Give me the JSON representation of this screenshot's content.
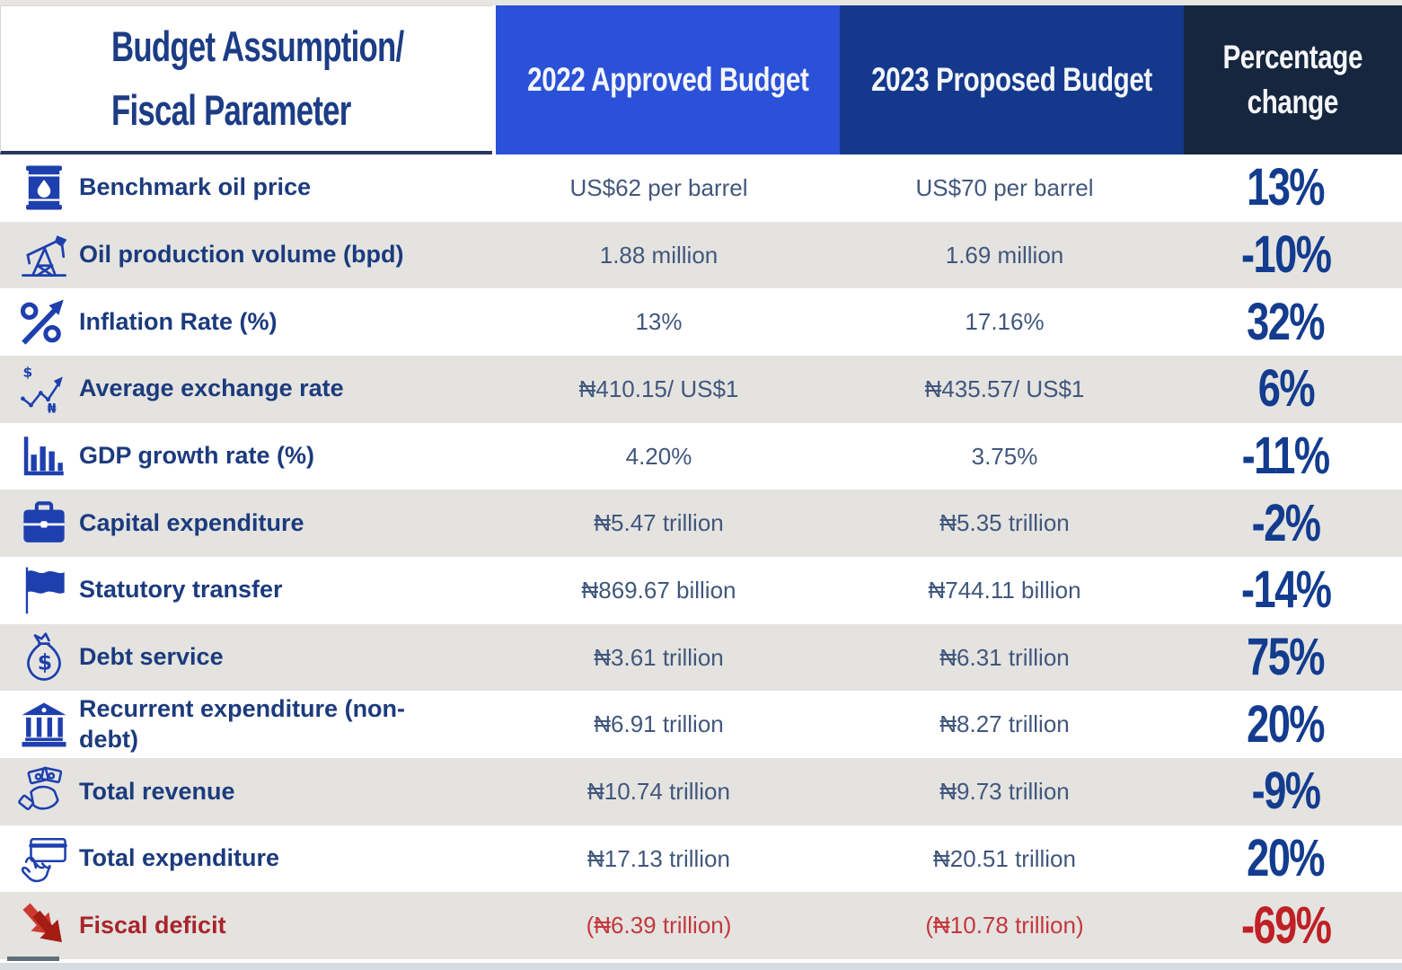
{
  "header": {
    "param_line1": "Budget Assumption/",
    "param_line2": "Fiscal Parameter",
    "col_2022": "2022 Approved Budget",
    "col_2023": "2023 Proposed Budget",
    "col_pct_line1": "Percentage",
    "col_pct_line2": "change"
  },
  "colors": {
    "bright_blue": "#2b51d8",
    "dark_blue": "#14398c",
    "navy": "#16263e",
    "row_alt_gray": "#e4e3e0",
    "label_blue": "#1c3b7d",
    "value_blue_gray": "#41577c",
    "pct_blue": "#133c8f",
    "deficit_red": "#bf2026",
    "icon_blue": "#1e3fae"
  },
  "rows": [
    {
      "icon": "oil-barrel-icon",
      "label": "Benchmark oil price",
      "v2022": "US$62 per barrel",
      "v2023": "US$70 per barrel",
      "pct": "13%",
      "deficit": false
    },
    {
      "icon": "oil-pump-icon",
      "label": "Oil production volume (bpd)",
      "v2022": "1.88 million",
      "v2023": "1.69 million",
      "pct": "-10%",
      "deficit": false
    },
    {
      "icon": "inflation-icon",
      "label": "Inflation Rate (%)",
      "v2022": "13%",
      "v2023": "17.16%",
      "pct": "32%",
      "deficit": false
    },
    {
      "icon": "exchange-rate-icon",
      "label": "Average exchange rate",
      "v2022": "₦410.15/ US$1",
      "v2023": "₦435.57/ US$1",
      "pct": "6%",
      "deficit": false
    },
    {
      "icon": "gdp-bar-chart-icon",
      "label": "GDP growth rate (%)",
      "v2022": "4.20%",
      "v2023": "3.75%",
      "pct": "-11%",
      "deficit": false
    },
    {
      "icon": "briefcase-icon",
      "label": "Capital expenditure",
      "v2022": "₦5.47 trillion",
      "v2023": "₦5.35 trillion",
      "pct": "-2%",
      "deficit": false
    },
    {
      "icon": "flag-icon",
      "label": "Statutory transfer",
      "v2022": "₦869.67 billion",
      "v2023": "₦744.11 billion",
      "pct": "-14%",
      "deficit": false
    },
    {
      "icon": "money-bag-icon",
      "label": "Debt service",
      "v2022": "₦3.61 trillion",
      "v2023": "₦6.31 trillion",
      "pct": "75%",
      "deficit": false
    },
    {
      "icon": "bank-icon",
      "label": "Recurrent expenditure (non-debt)",
      "v2022": "₦6.91 trillion",
      "v2023": "₦8.27 trillion",
      "pct": "20%",
      "deficit": false
    },
    {
      "icon": "cash-hand-icon",
      "label": "Total revenue",
      "v2022": "₦10.74 trillion",
      "v2023": "₦9.73 trillion",
      "pct": "-9%",
      "deficit": false
    },
    {
      "icon": "card-hand-icon",
      "label": "Total expenditure",
      "v2022": "₦17.13 trillion",
      "v2023": "₦20.51 trillion",
      "pct": "20%",
      "deficit": false
    },
    {
      "icon": "deficit-arrows-icon",
      "label": "Fiscal deficit",
      "v2022": "(₦6.39 trillion)",
      "v2023": "(₦10.78 trillion)",
      "pct": "-69%",
      "deficit": true
    }
  ],
  "chart_data": {
    "type": "table",
    "title": "Budget Assumption/Fiscal Parameter comparison",
    "columns": [
      "Budget Assumption/Fiscal Parameter",
      "2022 Approved Budget",
      "2023 Proposed Budget",
      "Percentage change"
    ],
    "rows": [
      [
        "Benchmark oil price",
        "US$62 per barrel",
        "US$70 per barrel",
        "13%"
      ],
      [
        "Oil production volume (bpd)",
        "1.88 million",
        "1.69 million",
        "-10%"
      ],
      [
        "Inflation Rate (%)",
        "13%",
        "17.16%",
        "32%"
      ],
      [
        "Average exchange rate",
        "₦410.15/ US$1",
        "₦435.57/ US$1",
        "6%"
      ],
      [
        "GDP growth rate (%)",
        "4.20%",
        "3.75%",
        "-11%"
      ],
      [
        "Capital expenditure",
        "₦5.47 trillion",
        "₦5.35 trillion",
        "-2%"
      ],
      [
        "Statutory transfer",
        "₦869.67 billion",
        "₦744.11 billion",
        "-14%"
      ],
      [
        "Debt service",
        "₦3.61 trillion",
        "₦6.31 trillion",
        "75%"
      ],
      [
        "Recurrent expenditure (non-debt)",
        "₦6.91 trillion",
        "₦8.27 trillion",
        "20%"
      ],
      [
        "Total revenue",
        "₦10.74 trillion",
        "₦9.73 trillion",
        "-9%"
      ],
      [
        "Total expenditure",
        "₦17.13 trillion",
        "₦20.51 trillion",
        "20%"
      ],
      [
        "Fiscal deficit",
        "(₦6.39 trillion)",
        "(₦10.78 trillion)",
        "-69%"
      ]
    ],
    "percentage_change_values": [
      13,
      -10,
      32,
      6,
      -11,
      -2,
      -14,
      75,
      20,
      -9,
      20,
      -69
    ]
  }
}
